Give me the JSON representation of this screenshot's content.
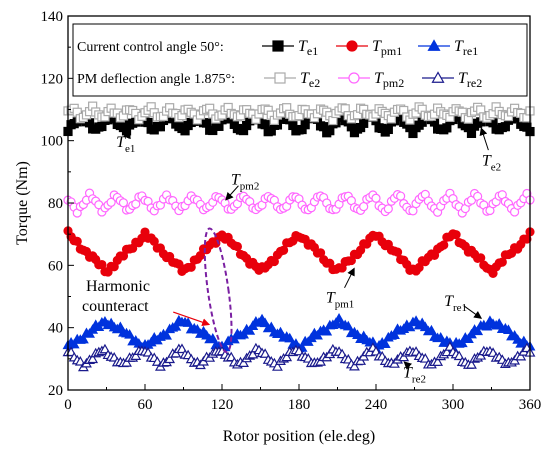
{
  "chart_data": {
    "type": "line",
    "xlabel": "Rotor position (ele.deg)",
    "ylabel": "Torque (Nm)",
    "xlim": [
      0,
      360
    ],
    "ylim": [
      20,
      140
    ],
    "xticks": [
      0,
      60,
      120,
      180,
      240,
      300,
      360
    ],
    "yticks": [
      20,
      40,
      60,
      80,
      100,
      120,
      140
    ],
    "legend": {
      "placement": "top",
      "row1_label": "Current control angle 50°:",
      "row2_label": "PM deflection angle 1.875°:"
    },
    "series": [
      {
        "id": "Te1",
        "name_main": "T",
        "name_sub": "e1",
        "color": "#000000",
        "marker": "square-filled",
        "legend_row": 1,
        "mean": 105.5,
        "amp": 2.6,
        "period": 22.5,
        "phase": 40,
        "jitter": 0.6
      },
      {
        "id": "Tpm1",
        "name_main": "T",
        "name_sub": "pm1",
        "color": "#e8000b",
        "marker": "circle-filled",
        "legend_row": 1,
        "mean": 64.0,
        "amp": 6.0,
        "period": 60,
        "phase": 15,
        "jitter": 0.7
      },
      {
        "id": "Tre1",
        "name_main": "T",
        "name_sub": "re1",
        "color": "#0033dd",
        "marker": "triangle-filled",
        "legend_row": 1,
        "mean": 38.0,
        "amp": 4.2,
        "period": 60,
        "phase": 45,
        "jitter": 0.7
      },
      {
        "id": "Te2",
        "name_main": "T",
        "name_sub": "e2",
        "color": "#aaaaaa",
        "marker": "square-open",
        "legend_row": 2,
        "mean": 108.8,
        "amp": 1.8,
        "period": 15,
        "phase": 0,
        "jitter": 0.5
      },
      {
        "id": "Tpm2",
        "name_main": "T",
        "name_sub": "pm2",
        "color": "#ff66ff",
        "marker": "circle-open",
        "legend_row": 2,
        "mean": 80.0,
        "amp": 2.8,
        "period": 20,
        "phase": 8,
        "jitter": 0.5
      },
      {
        "id": "Tre2",
        "name_main": "T",
        "name_sub": "re2",
        "color": "#1a1a8c",
        "marker": "triangle-open",
        "legend_row": 2,
        "mean": 30.5,
        "amp": 2.6,
        "period": 30,
        "phase": 10,
        "jitter": 0.5
      }
    ],
    "annotations": [
      {
        "id": "te1",
        "main": "T",
        "sub": "e1",
        "x": 45,
        "y": 98,
        "ax": 48,
        "ay": 103
      },
      {
        "id": "te2",
        "main": "T",
        "sub": "e2",
        "x": 330,
        "y": 92,
        "ax": 322,
        "ay": 104
      },
      {
        "id": "tpm2",
        "main": "T",
        "sub": "pm2",
        "x": 138,
        "y": 86,
        "ax": 123,
        "ay": 81
      },
      {
        "id": "tpm1",
        "main": "T",
        "sub": "pm1",
        "x": 212,
        "y": 48,
        "ax": 223,
        "ay": 59
      },
      {
        "id": "tre1",
        "main": "T",
        "sub": "re1",
        "x": 302,
        "y": 47,
        "ax": 322,
        "ay": 43
      },
      {
        "id": "tre2",
        "main": "T",
        "sub": "re2",
        "x": 270,
        "y": 24,
        "ax": 262,
        "ay": 29
      }
    ],
    "harmonic_annotation": {
      "label_line1": "Harmonic",
      "label_line2": "counteract",
      "ellipse_center": [
        117,
        52
      ],
      "ellipse_radii": [
        8,
        20
      ],
      "ellipse_color": "#7a1fa2",
      "arrow_color": "#e8000b",
      "arrow_from": [
        82,
        45
      ],
      "arrow_to": [
        110,
        41
      ]
    }
  }
}
